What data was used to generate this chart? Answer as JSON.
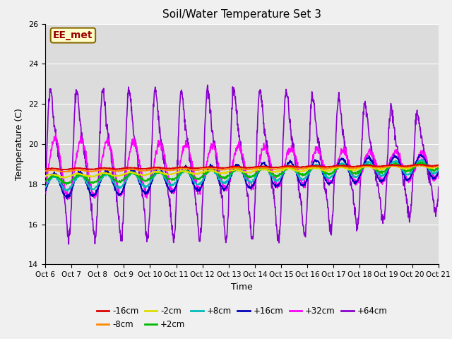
{
  "title": "Soil/Water Temperature Set 3",
  "xlabel": "Time",
  "ylabel": "Temperature (C)",
  "ylim": [
    14,
    26
  ],
  "xlim": [
    0,
    15
  ],
  "xtick_labels": [
    "Oct 6",
    "Oct 7",
    "Oct 8",
    "Oct 9",
    "Oct 10",
    "Oct 11",
    "Oct 12",
    "Oct 13",
    "Oct 14",
    "Oct 15",
    "Oct 16",
    "Oct 17",
    "Oct 18",
    "Oct 19",
    "Oct 20",
    "Oct 21"
  ],
  "ytick_values": [
    14,
    16,
    18,
    20,
    22,
    24,
    26
  ],
  "annotation_text": "EE_met",
  "annotation_bg": "#ffffcc",
  "annotation_border": "#886600",
  "annotation_text_color": "#990000",
  "series": {
    "-16cm": {
      "color": "#dd0000",
      "linewidth": 1.2
    },
    "-8cm": {
      "color": "#ff8800",
      "linewidth": 1.2
    },
    "-2cm": {
      "color": "#dddd00",
      "linewidth": 1.2
    },
    "+2cm": {
      "color": "#00bb00",
      "linewidth": 1.2
    },
    "+8cm": {
      "color": "#00bbbb",
      "linewidth": 1.2
    },
    "+16cm": {
      "color": "#0000bb",
      "linewidth": 1.2
    },
    "+32cm": {
      "color": "#ff00ff",
      "linewidth": 1.2
    },
    "+64cm": {
      "color": "#8800cc",
      "linewidth": 1.2
    }
  },
  "fig_bg": "#f0f0f0",
  "plot_bg": "#dcdcdc",
  "grid_color": "#ffffff",
  "legend_ncol": 6
}
